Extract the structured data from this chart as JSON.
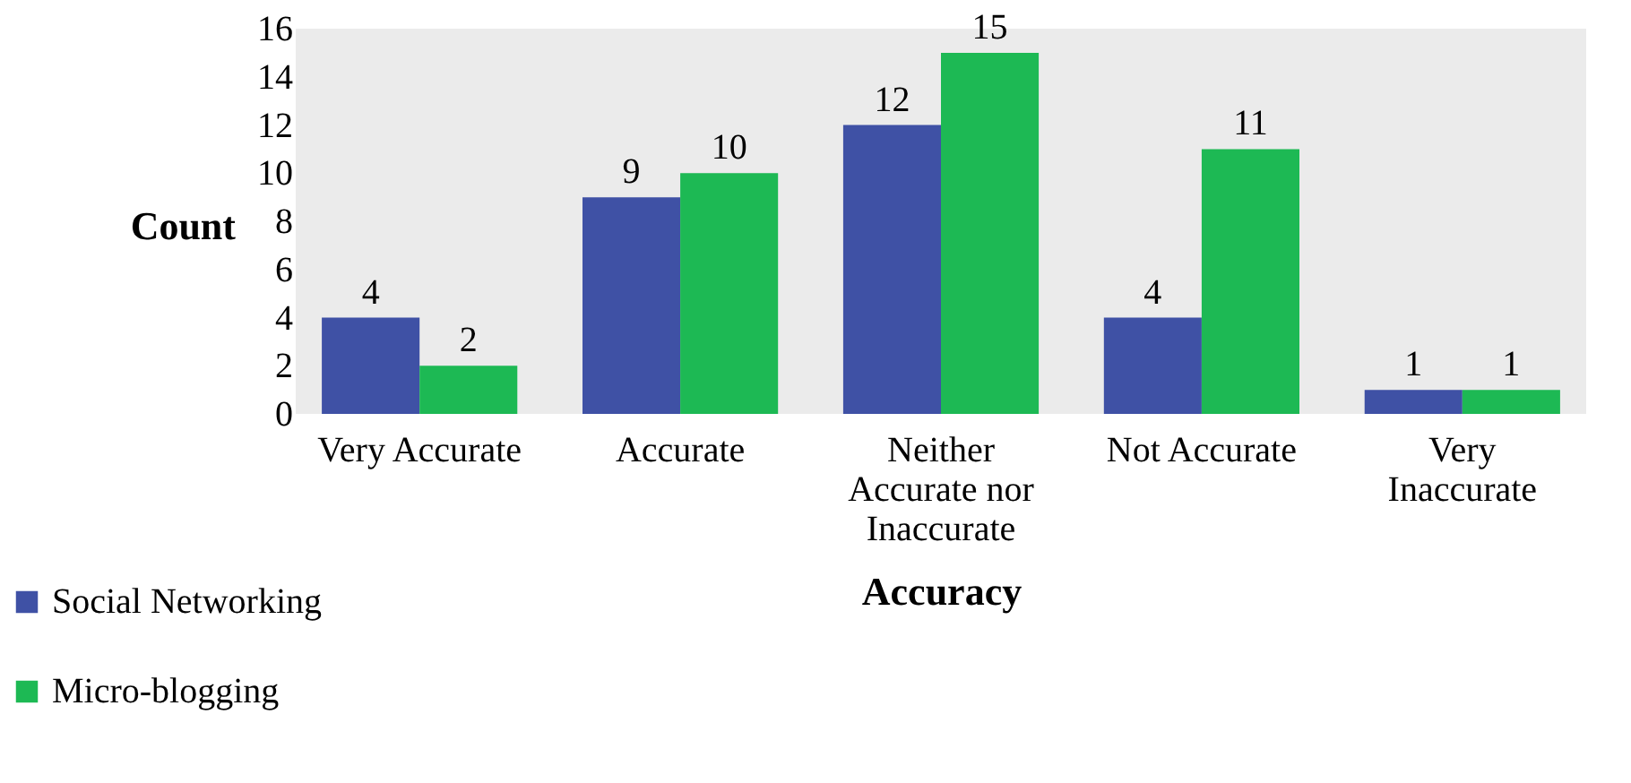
{
  "chart_data": {
    "type": "bar",
    "xlabel": "Accuracy",
    "ylabel": "Count",
    "categories": [
      "Very Accurate",
      "Accurate",
      "Neither Accurate nor Inaccurate",
      "Not Accurate",
      "Very Inaccurate"
    ],
    "series": [
      {
        "name": "Social Networking",
        "color": "#3f51a5",
        "values": [
          4,
          9,
          12,
          4,
          1
        ]
      },
      {
        "name": "Micro-blogging",
        "color": "#1db954",
        "values": [
          2,
          10,
          15,
          11,
          1
        ]
      }
    ],
    "ylim": [
      0,
      16
    ],
    "yticks": [
      0,
      2,
      4,
      6,
      8,
      10,
      12,
      14,
      16
    ],
    "grid": false,
    "legend": "bottom left",
    "data_labels": true
  }
}
